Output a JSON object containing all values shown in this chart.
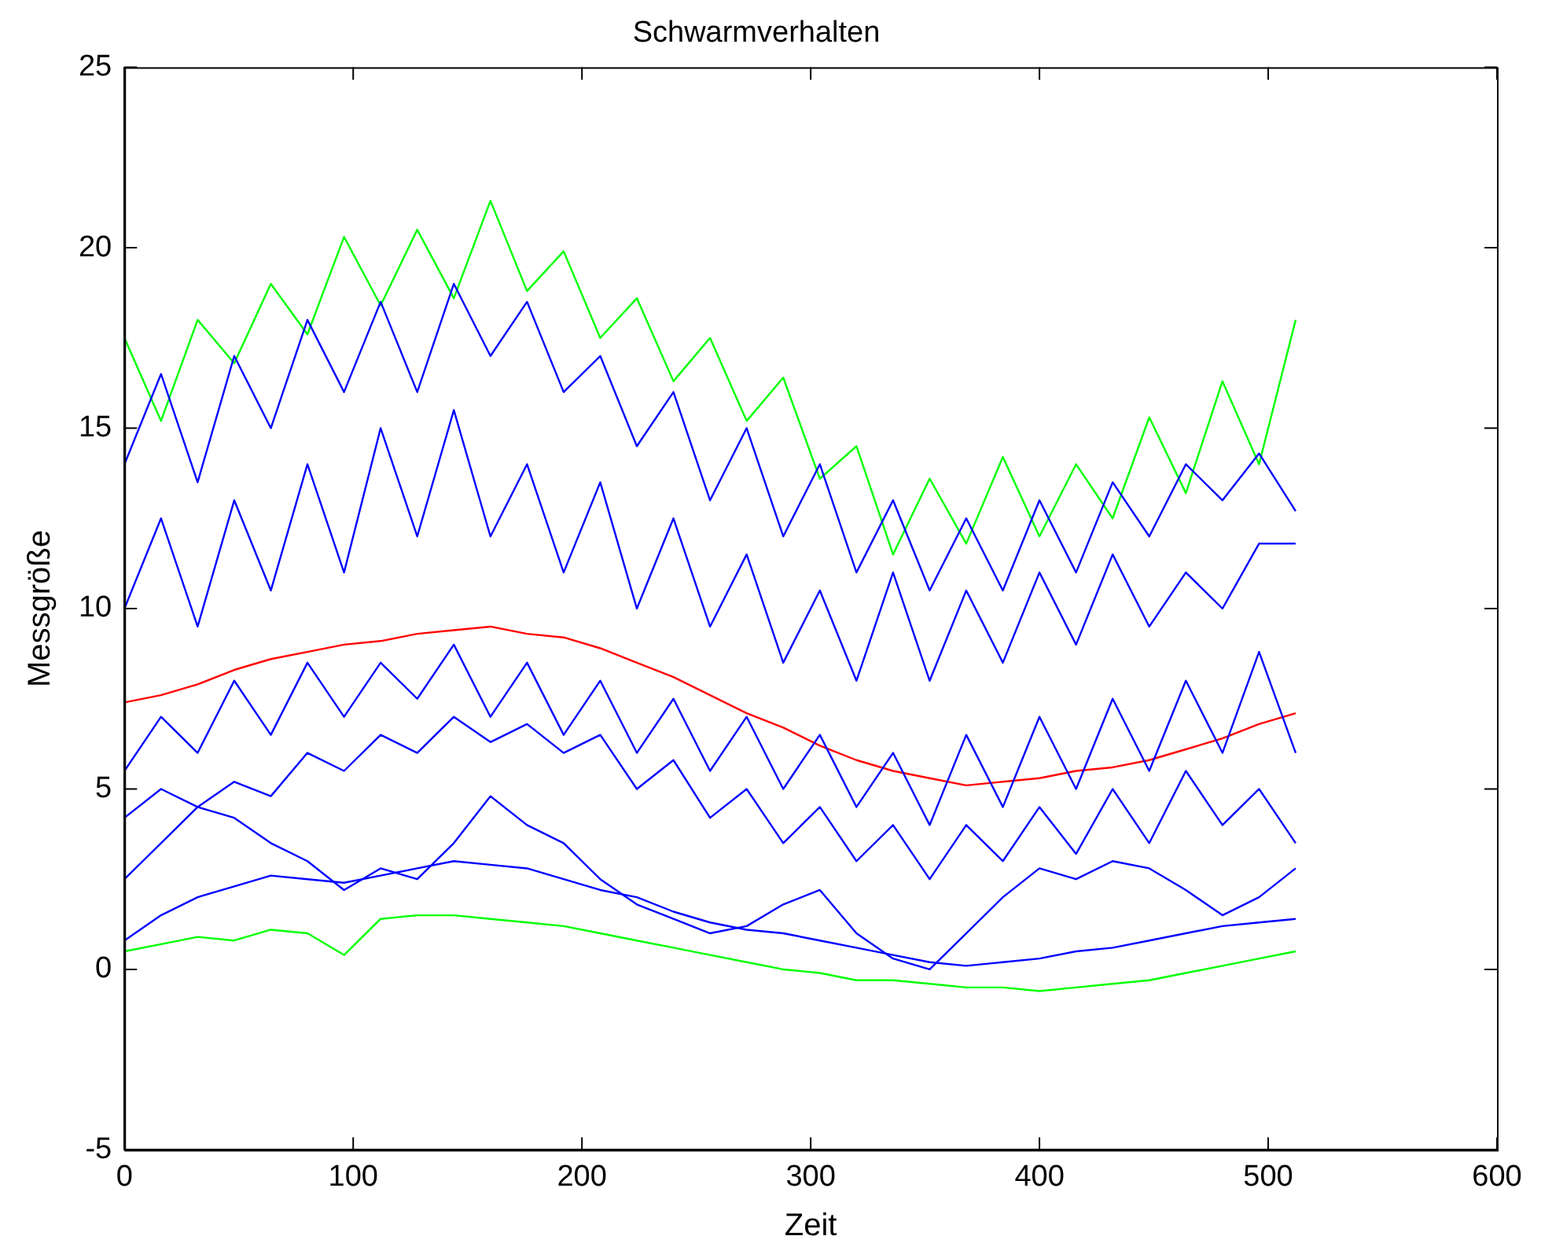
{
  "chart_data": {
    "type": "line",
    "title": "Schwarmverhalten",
    "xlabel": "Zeit",
    "ylabel": "Messgröße",
    "marker": "none",
    "legend": false,
    "grid": false,
    "xlim": [
      0,
      600
    ],
    "xticks": [
      0,
      100,
      200,
      300,
      400,
      500,
      600
    ],
    "ylim": [
      -5,
      25
    ],
    "yticks": [
      -5,
      0,
      5,
      10,
      15,
      20,
      25
    ],
    "x": [
      0,
      16,
      32,
      48,
      64,
      80,
      96,
      112,
      128,
      144,
      160,
      176,
      192,
      208,
      224,
      240,
      256,
      272,
      288,
      304,
      320,
      336,
      352,
      368,
      384,
      400,
      416,
      432,
      448,
      464,
      480,
      496,
      512
    ],
    "series": [
      {
        "color": "#0000ff",
        "values": [
          14,
          16.5,
          13.5,
          17,
          15,
          18,
          16,
          18.5,
          16,
          19,
          17,
          18.5,
          16,
          17,
          14.5,
          16,
          13,
          15,
          12,
          14,
          11,
          13,
          10.5,
          12.5,
          10.5,
          13,
          11,
          13.5,
          12,
          14,
          13,
          14.3,
          12.7
        ]
      },
      {
        "color": "#0000ff",
        "values": [
          10,
          12.5,
          9.5,
          13,
          10.5,
          14,
          11,
          15,
          12,
          15.5,
          12,
          14,
          11,
          13.5,
          10,
          12.5,
          9.5,
          11.5,
          8.5,
          10.5,
          8,
          11,
          8,
          10.5,
          8.5,
          11,
          9,
          11.5,
          9.5,
          11,
          10,
          11.8,
          11.8
        ]
      },
      {
        "color": "#0000ff",
        "values": [
          5.5,
          7,
          6,
          8,
          6.5,
          8.5,
          7,
          8.5,
          7.5,
          9,
          7,
          8.5,
          6.5,
          8,
          6,
          7.5,
          5.5,
          7,
          5,
          6.5,
          4.5,
          6,
          4,
          6.5,
          4.5,
          7,
          5,
          7.5,
          5.5,
          8,
          6,
          8.8,
          6
        ]
      },
      {
        "color": "#0000ff",
        "values": [
          4.2,
          5,
          4.5,
          5.2,
          4.8,
          6,
          5.5,
          6.5,
          6,
          7,
          6.3,
          6.8,
          6,
          6.5,
          5,
          5.8,
          4.2,
          5,
          3.5,
          4.5,
          3,
          4,
          2.5,
          4,
          3,
          4.5,
          3.2,
          5,
          3.5,
          5.5,
          4,
          5,
          3.5
        ]
      },
      {
        "color": "#0000ff",
        "values": [
          2.5,
          3.5,
          4.5,
          4.2,
          3.5,
          3,
          2.2,
          2.8,
          2.5,
          3.5,
          4.8,
          4,
          3.5,
          2.5,
          1.8,
          1.4,
          1,
          1.2,
          1.8,
          2.2,
          1,
          0.3,
          0,
          1,
          2,
          2.8,
          2.5,
          3,
          2.8,
          2.2,
          1.5,
          2,
          2.8
        ]
      },
      {
        "color": "#0000ff",
        "values": [
          0.8,
          1.5,
          2,
          2.3,
          2.6,
          2.5,
          2.4,
          2.6,
          2.8,
          3,
          2.9,
          2.8,
          2.5,
          2.2,
          2,
          1.6,
          1.3,
          1.1,
          1,
          0.8,
          0.6,
          0.4,
          0.2,
          0.1,
          0.2,
          0.3,
          0.5,
          0.6,
          0.8,
          1,
          1.2,
          1.3,
          1.4
        ]
      },
      {
        "color": "#00ff00",
        "values": [
          17.5,
          15.2,
          18,
          16.8,
          19,
          17.6,
          20.3,
          18.4,
          20.5,
          18.6,
          21.3,
          18.8,
          19.9,
          17.5,
          18.6,
          16.3,
          17.5,
          15.2,
          16.4,
          13.6,
          14.5,
          11.5,
          13.6,
          11.8,
          14.2,
          12,
          14,
          12.5,
          15.3,
          13.2,
          16.3,
          14,
          18
        ]
      },
      {
        "color": "#00ff00",
        "values": [
          0.5,
          0.7,
          0.9,
          0.8,
          1.1,
          1,
          0.4,
          1.4,
          1.5,
          1.5,
          1.4,
          1.3,
          1.2,
          1,
          0.8,
          0.6,
          0.4,
          0.2,
          0,
          -0.1,
          -0.3,
          -0.3,
          -0.4,
          -0.5,
          -0.5,
          -0.6,
          -0.5,
          -0.4,
          -0.3,
          -0.1,
          0.1,
          0.3,
          0.5
        ]
      },
      {
        "color": "#ff0000",
        "values": [
          7.4,
          7.6,
          7.9,
          8.3,
          8.6,
          8.8,
          9,
          9.1,
          9.3,
          9.4,
          9.5,
          9.3,
          9.2,
          8.9,
          8.5,
          8.1,
          7.6,
          7.1,
          6.7,
          6.2,
          5.8,
          5.5,
          5.3,
          5.1,
          5.2,
          5.3,
          5.5,
          5.6,
          5.8,
          6.1,
          6.4,
          6.8,
          7.1
        ]
      }
    ]
  }
}
